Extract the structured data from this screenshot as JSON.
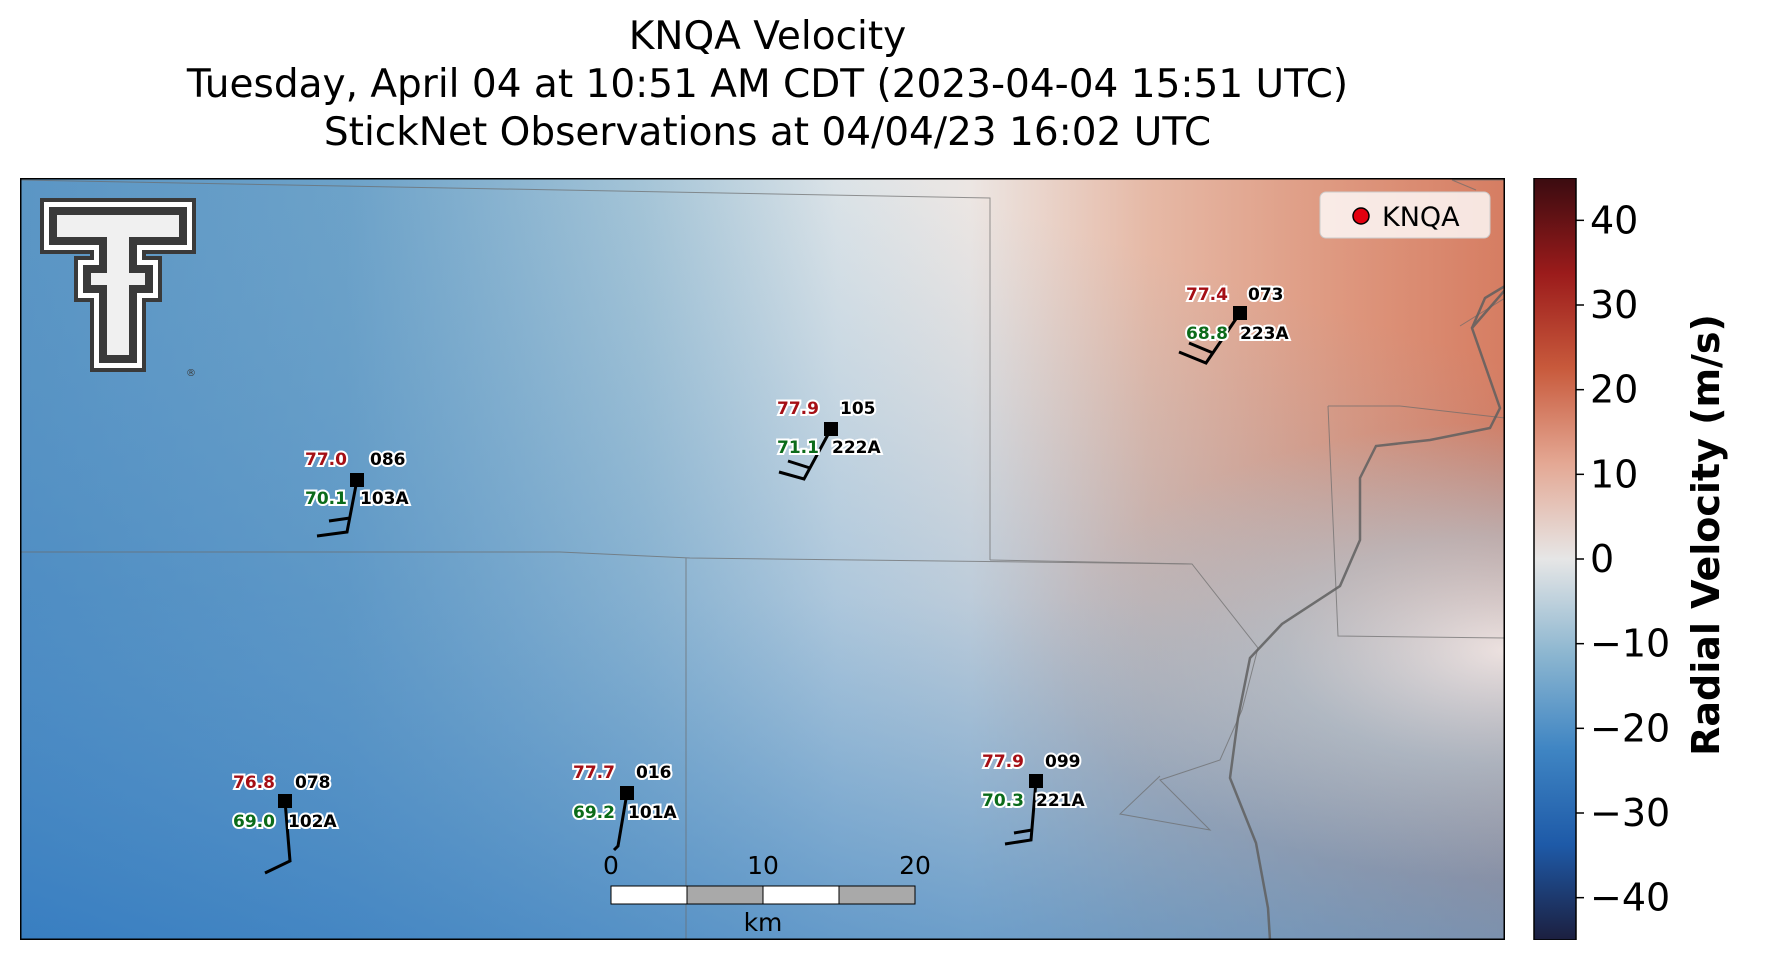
{
  "title": {
    "line1": "KNQA Velocity",
    "line2": "Tuesday, April 04 at 10:51 AM CDT (2023-04-04 15:51 UTC)",
    "line3": "StickNet Observations at 04/04/23 16:02 UTC"
  },
  "legend": {
    "label": "KNQA",
    "marker_color": "#e3000f"
  },
  "colorbar": {
    "label": "Radial Velocity (m/s)",
    "ticks": [
      "40",
      "30",
      "20",
      "10",
      "0",
      "−10",
      "−20",
      "−30",
      "−40"
    ],
    "range": [
      -45,
      45
    ],
    "colors": [
      "#1c1f3f",
      "#1e5aa8",
      "#3f85c3",
      "#8cb6d0",
      "#e6e6e6",
      "#e4a894",
      "#c85a3c",
      "#9b1b1b",
      "#3a0b10"
    ]
  },
  "scalebar": {
    "labels": [
      "0",
      "10",
      "20"
    ],
    "unit": "km"
  },
  "logo": {
    "name": "Texas Tech Double T"
  },
  "stations": [
    {
      "id": "103A",
      "temp": "77.0",
      "dew": "70.1",
      "dir": "086"
    },
    {
      "id": "222A",
      "temp": "77.9",
      "dew": "71.1",
      "dir": "105"
    },
    {
      "id": "223A",
      "temp": "77.4",
      "dew": "68.8",
      "dir": "073"
    },
    {
      "id": "102A",
      "temp": "76.8",
      "dew": "69.0",
      "dir": "078"
    },
    {
      "id": "101A",
      "temp": "77.7",
      "dew": "69.2",
      "dir": "016"
    },
    {
      "id": "221A",
      "temp": "77.9",
      "dew": "70.3",
      "dir": "099"
    }
  ]
}
